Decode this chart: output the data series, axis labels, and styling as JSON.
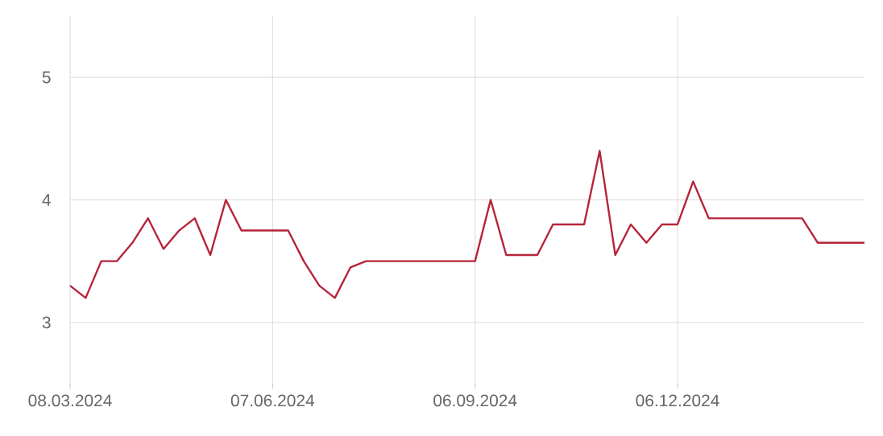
{
  "chart_data": {
    "type": "line",
    "x": [
      "2024-03-08",
      "2024-03-15",
      "2024-03-22",
      "2024-03-29",
      "2024-04-05",
      "2024-04-12",
      "2024-04-19",
      "2024-04-26",
      "2024-05-03",
      "2024-05-10",
      "2024-05-17",
      "2024-05-24",
      "2024-05-31",
      "2024-06-07",
      "2024-06-14",
      "2024-06-21",
      "2024-06-28",
      "2024-07-05",
      "2024-07-12",
      "2024-07-19",
      "2024-07-26",
      "2024-08-02",
      "2024-08-09",
      "2024-08-16",
      "2024-08-23",
      "2024-08-30",
      "2024-09-06",
      "2024-09-13",
      "2024-09-20",
      "2024-09-27",
      "2024-10-04",
      "2024-10-11",
      "2024-10-18",
      "2024-10-25",
      "2024-11-01",
      "2024-11-08",
      "2024-11-15",
      "2024-11-22",
      "2024-11-29",
      "2024-12-06",
      "2024-12-13",
      "2024-12-20",
      "2024-12-27",
      "2025-01-03",
      "2025-01-10",
      "2025-01-17",
      "2025-01-24",
      "2025-01-31",
      "2025-02-07",
      "2025-02-14",
      "2025-02-21",
      "2025-02-28"
    ],
    "series": [
      {
        "color": "#b5243a",
        "values": [
          3.3,
          3.2,
          3.5,
          3.5,
          3.65,
          3.85,
          3.6,
          3.75,
          3.85,
          3.55,
          4.0,
          3.75,
          3.75,
          3.75,
          3.75,
          3.5,
          3.3,
          3.2,
          3.45,
          3.5,
          3.5,
          3.5,
          3.5,
          3.5,
          3.5,
          3.5,
          3.5,
          4.0,
          3.55,
          3.55,
          3.55,
          3.8,
          3.8,
          3.8,
          4.4,
          3.55,
          3.8,
          3.65,
          3.8,
          3.8,
          4.15,
          3.85,
          3.85,
          3.85,
          3.85,
          3.85,
          3.85,
          3.85,
          3.65,
          3.65,
          3.65,
          3.65
        ]
      }
    ],
    "xlim": [
      "2024-03-08",
      "2025-02-28"
    ],
    "xticks": [
      {
        "value": "2024-03-08",
        "label": "08.03.2024"
      },
      {
        "value": "2024-06-07",
        "label": "07.06.2024"
      },
      {
        "value": "2024-09-06",
        "label": "06.09.2024"
      },
      {
        "value": "2024-12-06",
        "label": "06.12.2024"
      }
    ],
    "ylim": [
      2.5,
      5.5
    ],
    "yticks": [
      3,
      4,
      5
    ],
    "grid": true,
    "marker": "none",
    "line_style": "solid"
  }
}
